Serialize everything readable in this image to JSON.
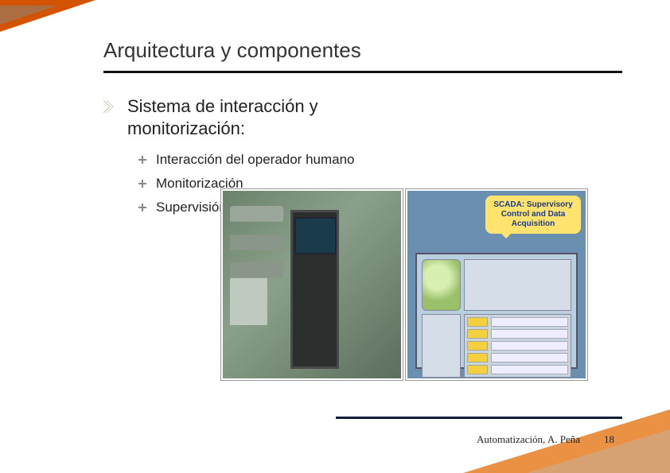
{
  "slide": {
    "title": "Arquitectura y componentes",
    "heading": "Sistema de interacción y monitorización:",
    "sub_items": [
      "Interacción del operador humano",
      "Monitorización",
      "Supervisión"
    ],
    "callout_text": "SCADA: Supervisory Control and Data Acquisition",
    "footer_author": "Automatización, A. Peña",
    "page_number": "18"
  },
  "style": {
    "accent_color": "#d35400",
    "title_fontsize": 26,
    "heading_fontsize": 22,
    "subitem_fontsize": 17,
    "footer_fontsize": 13,
    "rule_color": "#111111",
    "callout_bg": "#ffe36e",
    "callout_text_color": "#1a3a8a",
    "background": "#ffffff"
  }
}
